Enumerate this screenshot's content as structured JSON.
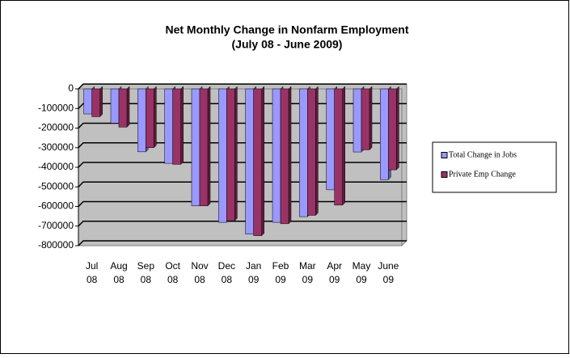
{
  "chart_data": {
    "type": "bar",
    "title": "Net Monthly Change in Nonfarm Employment",
    "subtitle": "(July 08 - June 2009)",
    "categories": [
      "Jul 08",
      "Aug 08",
      "Sep 08",
      "Oct 08",
      "Nov 08",
      "Dec 08",
      "Jan 09",
      "Feb 09",
      "Mar 09",
      "Apr 09",
      "May 09",
      "June 09"
    ],
    "series": [
      {
        "name": "Total Change in Jobs",
        "color": "#9999ff",
        "values": [
          -128000,
          -175000,
          -321000,
          -380000,
          -597000,
          -681000,
          -741000,
          -681000,
          -652000,
          -515000,
          -322000,
          -463000
        ]
      },
      {
        "name": "Private Emp Change",
        "color": "#993366",
        "values": [
          -142000,
          -195000,
          -300000,
          -385000,
          -597000,
          -673000,
          -749000,
          -688000,
          -645000,
          -593000,
          -311000,
          -413000
        ]
      }
    ],
    "ylim": [
      -800000,
      0
    ],
    "yticks": [
      0,
      -100000,
      -200000,
      -300000,
      -400000,
      -500000,
      -600000,
      -700000,
      -800000
    ],
    "grid": true,
    "legend": "right"
  }
}
